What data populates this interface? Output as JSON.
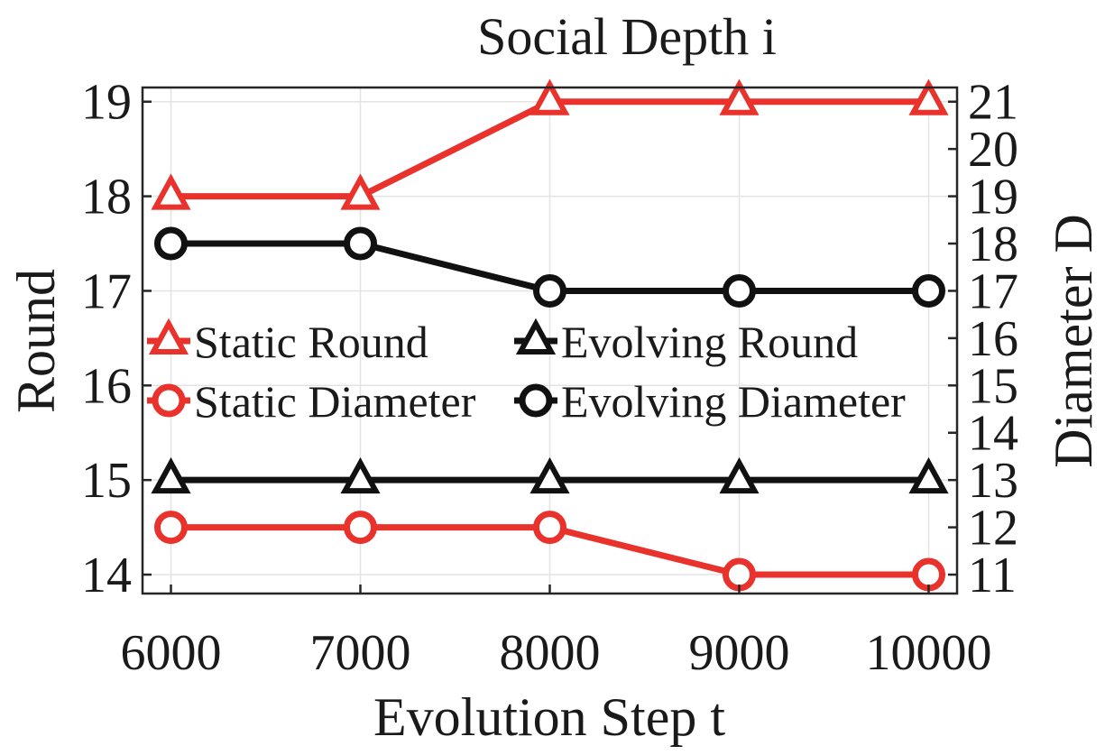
{
  "chart_data": {
    "type": "line",
    "title": "Social Depth i",
    "xlabel": "Evolution Step t",
    "ylabel": "Round",
    "y2label": "Diameter D",
    "x": [
      6000,
      7000,
      8000,
      9000,
      10000
    ],
    "x_ticks": [
      "6000",
      "7000",
      "8000",
      "9000",
      "10000"
    ],
    "xlim": [
      5850,
      10150
    ],
    "ylim": [
      13.8,
      19.15
    ],
    "y_ticks": [
      "14",
      "15",
      "16",
      "17",
      "18",
      "19"
    ],
    "y2lim": [
      10.6,
      21.3
    ],
    "y2_ticks": [
      "11",
      "12",
      "13",
      "14",
      "15",
      "16",
      "17",
      "18",
      "19",
      "20",
      "21"
    ],
    "grid": true,
    "legend_position": "center",
    "series": [
      {
        "name": "Static Round",
        "axis": "left",
        "color": "#e8322b",
        "marker": "triangle",
        "values": [
          18,
          18,
          19,
          19,
          19
        ]
      },
      {
        "name": "Evolving Round",
        "axis": "left",
        "color": "#111111",
        "marker": "triangle",
        "values": [
          15,
          15,
          15,
          15,
          15
        ]
      },
      {
        "name": "Static Diameter",
        "axis": "right",
        "color": "#e8322b",
        "marker": "circle",
        "values": [
          12,
          12,
          12,
          11,
          11
        ]
      },
      {
        "name": "Evolving Diameter",
        "axis": "right",
        "color": "#111111",
        "marker": "circle",
        "values": [
          18,
          18,
          17,
          17,
          17
        ]
      }
    ]
  }
}
